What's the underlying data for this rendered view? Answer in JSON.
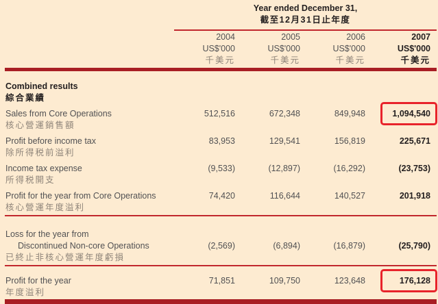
{
  "colors": {
    "background": "#fdebd1",
    "text": "#515153",
    "text_bold": "#221e1f",
    "text_chinese": "#8f857a",
    "rule_thin": "#c1272d",
    "rule_thick": "#a81e24",
    "highlight_box": "#e8232b"
  },
  "header": {
    "title_en": "Year ended December 31,",
    "title_zh": "截至12月31日止年度",
    "columns": [
      {
        "year": "2004",
        "unit_en": "US$'000",
        "unit_zh": "千美元"
      },
      {
        "year": "2005",
        "unit_en": "US$'000",
        "unit_zh": "千美元"
      },
      {
        "year": "2006",
        "unit_en": "US$'000",
        "unit_zh": "千美元"
      },
      {
        "year": "2007",
        "unit_en": "US$'000",
        "unit_zh": "千美元"
      }
    ]
  },
  "table": {
    "section": {
      "label_en": "Combined results",
      "label_zh": "綜合業績"
    },
    "rows": [
      {
        "label_en": "Sales from Core Operations",
        "label_zh": "核心營運銷售額",
        "values": [
          "512,516",
          "672,348",
          "849,948",
          "1,094,540"
        ],
        "highlight_2007": true
      },
      {
        "label_en": "Profit before income tax",
        "label_zh": "除所得税前溢利",
        "values": [
          "83,953",
          "129,541",
          "156,819",
          "225,671"
        ],
        "highlight_2007": false
      },
      {
        "label_en": "Income tax expense",
        "label_zh": "所得税開支",
        "values": [
          "(9,533)",
          "(12,897)",
          "(16,292)",
          "(23,753)"
        ],
        "highlight_2007": false
      },
      {
        "label_en": "Profit for the year from Core Operations",
        "label_zh": "核心營運年度溢利",
        "values": [
          "74,420",
          "116,644",
          "140,527",
          "201,918"
        ],
        "highlight_2007": false
      },
      {
        "label_en_line1": "Loss for the year from",
        "label_en_line2": "Discontinued Non-core Operations",
        "label_zh": "已終止非核心營運年度虧損",
        "values": [
          "(2,569)",
          "(6,894)",
          "(16,879)",
          "(25,790)"
        ],
        "highlight_2007": false
      },
      {
        "label_en": "Profit for the year",
        "label_zh": "年度溢利",
        "values": [
          "71,851",
          "109,750",
          "123,648",
          "176,128"
        ],
        "highlight_2007": true
      }
    ]
  }
}
